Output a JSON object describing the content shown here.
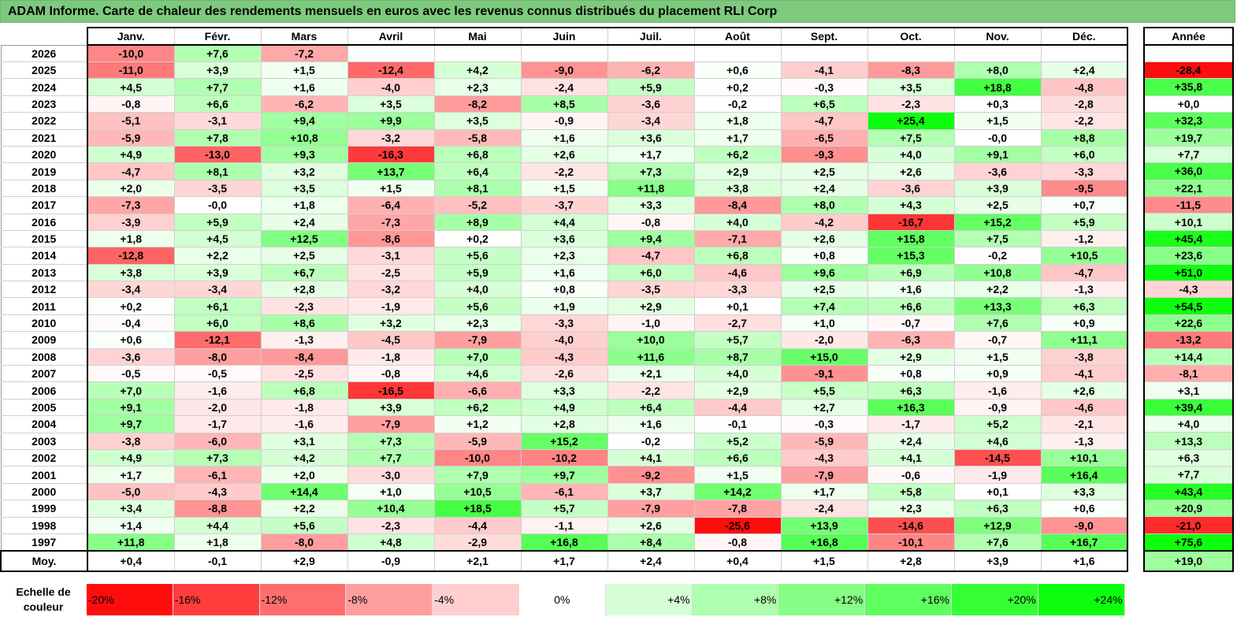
{
  "title": "ADAM Informe. Carte de chaleur des rendements mensuels en euros avec les revenus connus distribués du placement RLI Corp",
  "colors": {
    "title_bg": "#7dc97d",
    "negative_max": "#ff0000",
    "neutral": "#ffffff",
    "positive_max": "#00ff00"
  },
  "chart_data": {
    "type": "heatmap",
    "title": "ADAM Informe. Carte de chaleur des rendements mensuels en euros avec les revenus connus distribués du placement RLI Corp",
    "months": [
      "Janv.",
      "Févr.",
      "Mars",
      "Avril",
      "Mai",
      "Juin",
      "Juil.",
      "Août",
      "Sept.",
      "Oct.",
      "Nov.",
      "Déc."
    ],
    "annual_header": "Année",
    "rows": [
      {
        "year": "2026",
        "values": [
          "-10,0",
          "+7,6",
          "-7,2",
          "",
          "",
          "",
          "",
          "",
          "",
          "",
          "",
          ""
        ],
        "annual": ""
      },
      {
        "year": "2025",
        "values": [
          "-11,0",
          "+3,9",
          "+1,5",
          "-12,4",
          "+4,2",
          "-9,0",
          "-6,2",
          "+0,6",
          "-4,1",
          "-8,3",
          "+8,0",
          "+2,4"
        ],
        "annual": "-28,4"
      },
      {
        "year": "2024",
        "values": [
          "+4,5",
          "+7,7",
          "+1,6",
          "-4,0",
          "+2,3",
          "-2,4",
          "+5,9",
          "+0,2",
          "-0,3",
          "+3,5",
          "+18,8",
          "-4,8"
        ],
        "annual": "+35,8"
      },
      {
        "year": "2023",
        "values": [
          "-0,8",
          "+6,6",
          "-6,2",
          "+3,5",
          "-8,2",
          "+8,5",
          "-3,6",
          "-0,2",
          "+6,5",
          "-2,3",
          "+0,3",
          "-2,8"
        ],
        "annual": "+0,0"
      },
      {
        "year": "2022",
        "values": [
          "-5,1",
          "-3,1",
          "+9,4",
          "+9,9",
          "+3,5",
          "-0,9",
          "-3,4",
          "+1,8",
          "-4,7",
          "+25,4",
          "+1,5",
          "-2,2"
        ],
        "annual": "+32,3"
      },
      {
        "year": "2021",
        "values": [
          "-5,9",
          "+7,8",
          "+10,8",
          "-3,2",
          "-5,8",
          "+1,6",
          "+3,6",
          "+1,7",
          "-6,5",
          "+7,5",
          "-0,0",
          "+8,8"
        ],
        "annual": "+19,7"
      },
      {
        "year": "2020",
        "values": [
          "+4,9",
          "-13,0",
          "+9,3",
          "-16,3",
          "+6,8",
          "+2,6",
          "+1,7",
          "+6,2",
          "-9,3",
          "+4,0",
          "+9,1",
          "+6,0"
        ],
        "annual": "+7,7"
      },
      {
        "year": "2019",
        "values": [
          "-4,7",
          "+8,1",
          "+3,2",
          "+13,7",
          "+6,4",
          "-2,2",
          "+7,3",
          "+2,9",
          "+2,5",
          "+2,6",
          "-3,6",
          "-3,3"
        ],
        "annual": "+36,0"
      },
      {
        "year": "2018",
        "values": [
          "+2,0",
          "-3,5",
          "+3,5",
          "+1,5",
          "+8,1",
          "+1,5",
          "+11,8",
          "+3,8",
          "+2,4",
          "-3,6",
          "+3,9",
          "-9,5"
        ],
        "annual": "+22,1"
      },
      {
        "year": "2017",
        "values": [
          "-7,3",
          "-0,0",
          "+1,8",
          "-6,4",
          "-5,2",
          "-3,7",
          "+3,3",
          "-8,4",
          "+8,0",
          "+4,3",
          "+2,5",
          "+0,7"
        ],
        "annual": "-11,5"
      },
      {
        "year": "2016",
        "values": [
          "-3,9",
          "+5,9",
          "+2,4",
          "-7,3",
          "+8,9",
          "+4,4",
          "-0,8",
          "+4,0",
          "-4,2",
          "-16,7",
          "+15,2",
          "+5,9"
        ],
        "annual": "+10,1"
      },
      {
        "year": "2015",
        "values": [
          "+1,8",
          "+4,5",
          "+12,5",
          "-8,6",
          "+0,2",
          "+3,6",
          "+9,4",
          "-7,1",
          "+2,6",
          "+15,8",
          "+7,5",
          "-1,2"
        ],
        "annual": "+45,4"
      },
      {
        "year": "2014",
        "values": [
          "-12,8",
          "+2,2",
          "+2,5",
          "-3,1",
          "+5,6",
          "+2,3",
          "-4,7",
          "+6,8",
          "+0,8",
          "+15,3",
          "-0,2",
          "+10,5"
        ],
        "annual": "+23,6"
      },
      {
        "year": "2013",
        "values": [
          "+3,8",
          "+3,9",
          "+6,7",
          "-2,5",
          "+5,9",
          "+1,6",
          "+6,0",
          "-4,6",
          "+9,6",
          "+6,9",
          "+10,8",
          "-4,7"
        ],
        "annual": "+51,0"
      },
      {
        "year": "2012",
        "values": [
          "-3,4",
          "-3,4",
          "+2,8",
          "-3,2",
          "+4,0",
          "+0,8",
          "-3,5",
          "-3,3",
          "+2,5",
          "+1,6",
          "+2,2",
          "-1,3"
        ],
        "annual": "-4,3"
      },
      {
        "year": "2011",
        "values": [
          "+0,2",
          "+6,1",
          "-2,3",
          "-1,9",
          "+5,6",
          "+1,9",
          "+2,9",
          "+0,1",
          "+7,4",
          "+6,6",
          "+13,3",
          "+6,3"
        ],
        "annual": "+54,5"
      },
      {
        "year": "2010",
        "values": [
          "-0,4",
          "+6,0",
          "+8,6",
          "+3,2",
          "+2,3",
          "-3,3",
          "-1,0",
          "-2,7",
          "+1,0",
          "-0,7",
          "+7,6",
          "+0,9"
        ],
        "annual": "+22,6"
      },
      {
        "year": "2009",
        "values": [
          "+0,6",
          "-12,1",
          "-1,3",
          "-4,5",
          "-7,9",
          "-4,0",
          "+10,0",
          "+5,7",
          "-2,0",
          "-6,3",
          "-0,7",
          "+11,1"
        ],
        "annual": "-13,2"
      },
      {
        "year": "2008",
        "values": [
          "-3,6",
          "-8,0",
          "-8,4",
          "-1,8",
          "+7,0",
          "-4,3",
          "+11,6",
          "+8,7",
          "+15,0",
          "+2,9",
          "+1,5",
          "-3,8"
        ],
        "annual": "+14,4"
      },
      {
        "year": "2007",
        "values": [
          "-0,5",
          "-0,5",
          "-2,5",
          "-0,8",
          "+4,6",
          "-2,6",
          "+2,1",
          "+4,0",
          "-9,1",
          "+0,8",
          "+0,9",
          "-4,1"
        ],
        "annual": "-8,1"
      },
      {
        "year": "2006",
        "values": [
          "+7,0",
          "-1,6",
          "+6,8",
          "-16,5",
          "-6,6",
          "+3,3",
          "-2,2",
          "+2,9",
          "+5,5",
          "+6,3",
          "-1,6",
          "+2,6"
        ],
        "annual": "+3,1"
      },
      {
        "year": "2005",
        "values": [
          "+9,1",
          "-2,0",
          "-1,8",
          "+3,9",
          "+6,2",
          "+4,9",
          "+6,4",
          "-4,4",
          "+2,7",
          "+16,3",
          "-0,9",
          "-4,6"
        ],
        "annual": "+39,4"
      },
      {
        "year": "2004",
        "values": [
          "+9,7",
          "-1,7",
          "-1,6",
          "-7,9",
          "+1,2",
          "+2,8",
          "+1,6",
          "-0,1",
          "-0,3",
          "-1,7",
          "+5,2",
          "-2,1"
        ],
        "annual": "+4,0"
      },
      {
        "year": "2003",
        "values": [
          "-3,8",
          "-6,0",
          "+3,1",
          "+7,3",
          "-5,9",
          "+15,2",
          "-0,2",
          "+5,2",
          "-5,9",
          "+2,4",
          "+4,6",
          "-1,3"
        ],
        "annual": "+13,3"
      },
      {
        "year": "2002",
        "values": [
          "+4,9",
          "+7,3",
          "+4,2",
          "+7,7",
          "-10,0",
          "-10,2",
          "+4,1",
          "+6,6",
          "-4,3",
          "+4,1",
          "-14,5",
          "+10,1"
        ],
        "annual": "+6,3"
      },
      {
        "year": "2001",
        "values": [
          "+1,7",
          "-6,1",
          "+2,0",
          "-3,0",
          "+7,9",
          "+9,7",
          "-9,2",
          "+1,5",
          "-7,9",
          "-0,6",
          "-1,9",
          "+16,4"
        ],
        "annual": "+7,7"
      },
      {
        "year": "2000",
        "values": [
          "-5,0",
          "-4,3",
          "+14,4",
          "+1,0",
          "+10,5",
          "-6,1",
          "+3,7",
          "+14,2",
          "+1,7",
          "+5,8",
          "+0,1",
          "+3,3"
        ],
        "annual": "+43,4"
      },
      {
        "year": "1999",
        "values": [
          "+3,4",
          "-8,8",
          "+2,2",
          "+10,4",
          "+18,5",
          "+5,7",
          "-7,9",
          "-7,8",
          "-2,4",
          "+2,3",
          "+6,3",
          "+0,6"
        ],
        "annual": "+20,9"
      },
      {
        "year": "1998",
        "values": [
          "+1,4",
          "+4,4",
          "+5,6",
          "-2,3",
          "-4,4",
          "-1,1",
          "+2,6",
          "-25,6",
          "+13,9",
          "-14,6",
          "+12,9",
          "-9,0"
        ],
        "annual": "-21,0"
      },
      {
        "year": "1997",
        "values": [
          "+11,8",
          "+1,8",
          "-8,0",
          "+4,8",
          "-2,9",
          "+16,8",
          "+8,4",
          "-0,8",
          "+16,8",
          "-10,1",
          "+7,6",
          "+16,7"
        ],
        "annual": "+75,6"
      }
    ],
    "average": {
      "label": "Moy.",
      "values": [
        "+0,4",
        "-0,1",
        "+2,9",
        "-0,9",
        "+2,1",
        "+1,7",
        "+2,4",
        "+0,4",
        "+1,5",
        "+2,8",
        "+3,9",
        "+1,6"
      ],
      "annual": "+19,0"
    },
    "scale": {
      "label": "Echelle de couleur",
      "steps": [
        "-20%",
        "-16%",
        "-12%",
        "-8%",
        "-4%",
        "0%",
        "+4%",
        "+8%",
        "+12%",
        "+16%",
        "+20%",
        "+24%"
      ],
      "monthly_range": [
        -20,
        24
      ],
      "annual_range": [
        -24,
        48
      ]
    }
  }
}
